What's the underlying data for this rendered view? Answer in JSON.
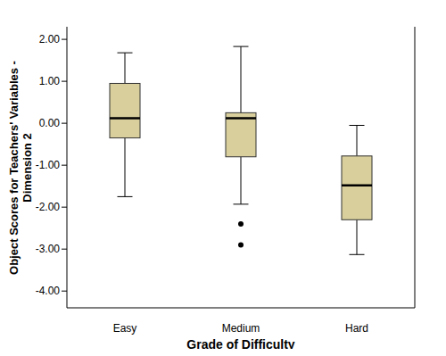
{
  "chart_data": {
    "type": "box",
    "x_label": "Grade of Difficulty",
    "y_label": "Object Scores for Teachers' Variables - Dimension 2",
    "categories": [
      "Easy",
      "Medium",
      "Hard"
    ],
    "boxes": [
      {
        "min": -1.75,
        "q1": -0.35,
        "median": 0.12,
        "q3": 0.95,
        "max": 1.68,
        "outliers": []
      },
      {
        "min": -1.93,
        "q1": -0.8,
        "median": 0.12,
        "q3": 0.25,
        "max": 1.83,
        "outliers": [
          -2.4,
          -2.9
        ]
      },
      {
        "min": -3.13,
        "q1": -2.3,
        "median": -1.48,
        "q3": -0.78,
        "max": -0.05,
        "outliers": []
      }
    ],
    "color": "#d8cf9c",
    "marker": "circle",
    "grid": false,
    "ylim": [
      -4.4,
      2.3
    ],
    "yticks": [
      {
        "value": -4,
        "label": "-4.00"
      },
      {
        "value": -3,
        "label": "-3.00"
      },
      {
        "value": -2,
        "label": "-2.00"
      },
      {
        "value": -1,
        "label": "-1.00"
      },
      {
        "value": 0,
        "label": "0.00"
      },
      {
        "value": 1,
        "label": "1.00"
      },
      {
        "value": 2,
        "label": "2.00"
      }
    ]
  }
}
